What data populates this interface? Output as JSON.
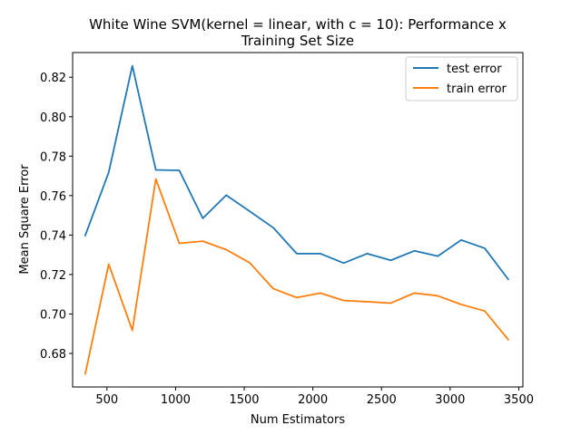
{
  "chart_data": {
    "type": "line",
    "title_line1": "White Wine SVM(kernel = linear, with c = 10): Performance x",
    "title_line2": "Training Set Size",
    "xlabel": "Num Estimators",
    "ylabel": "Mean Square Error",
    "xlim": [
      250,
      3530
    ],
    "ylim": [
      0.663,
      0.8325
    ],
    "xticks": [
      500,
      1000,
      1500,
      2000,
      2500,
      3000,
      3500
    ],
    "yticks": [
      0.68,
      0.7,
      0.72,
      0.74,
      0.76,
      0.78,
      0.8,
      0.82
    ],
    "ytick_labels": [
      "0.68",
      "0.70",
      "0.72",
      "0.74",
      "0.76",
      "0.78",
      "0.80",
      "0.82"
    ],
    "x": [
      342,
      513,
      685,
      856,
      1027,
      1198,
      1369,
      1541,
      1712,
      1883,
      2054,
      2225,
      2396,
      2568,
      2739,
      2910,
      3081,
      3252,
      3423
    ],
    "series": [
      {
        "name": "test error",
        "color": "#1f77b4",
        "values": [
          0.7398,
          0.7718,
          0.8258,
          0.773,
          0.7728,
          0.7485,
          0.7602,
          0.752,
          0.7437,
          0.7306,
          0.7306,
          0.7258,
          0.7306,
          0.7272,
          0.732,
          0.7293,
          0.7375,
          0.7333,
          0.7176
        ]
      },
      {
        "name": "train error",
        "color": "#ff7f0e",
        "values": [
          0.6697,
          0.7252,
          0.6917,
          0.7684,
          0.7358,
          0.7369,
          0.7326,
          0.7259,
          0.7128,
          0.7083,
          0.7106,
          0.7068,
          0.7062,
          0.7055,
          0.7106,
          0.7092,
          0.7048,
          0.7015,
          0.687
        ]
      }
    ],
    "grid": false,
    "legend_position": "upper-right"
  }
}
